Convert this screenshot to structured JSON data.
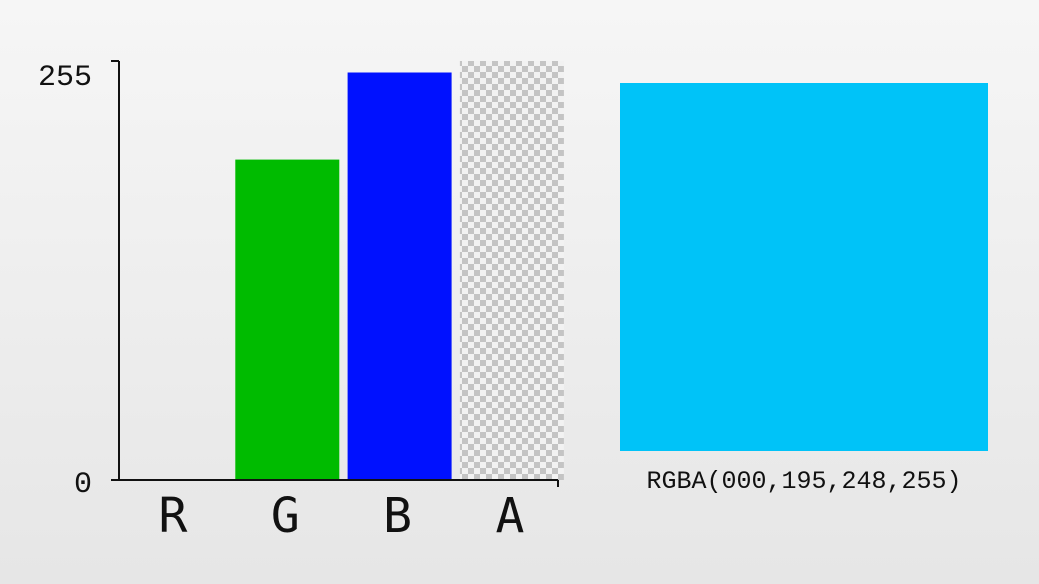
{
  "chart_data": {
    "type": "bar",
    "categories": [
      "R",
      "G",
      "B",
      "A"
    ],
    "values": [
      0,
      195,
      248,
      255
    ],
    "bar_colors": [
      "#ff0000",
      "#00bb00",
      "#0011ff",
      "checkerboard"
    ],
    "ylim": [
      0,
      255
    ],
    "y_tick_labels": [
      "0",
      "255"
    ],
    "grid": false,
    "legend": "none"
  },
  "swatch": {
    "color": "#00c3f8",
    "label": "RGBA(000,195,248,255)"
  },
  "colors": {
    "axis": "#111111",
    "text": "#111111",
    "checker_light": "#f2f2f2",
    "checker_dark": "#c4c4c4"
  }
}
